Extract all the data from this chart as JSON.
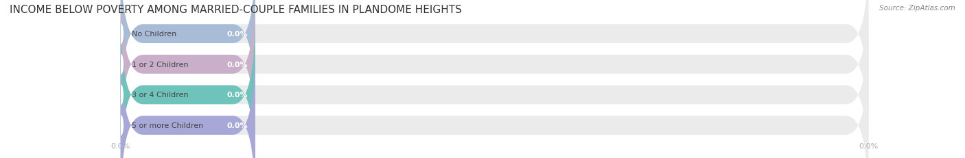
{
  "title": "INCOME BELOW POVERTY AMONG MARRIED-COUPLE FAMILIES IN PLANDOME HEIGHTS",
  "source": "Source: ZipAtlas.com",
  "categories": [
    "No Children",
    "1 or 2 Children",
    "3 or 4 Children",
    "5 or more Children"
  ],
  "values": [
    0.0,
    0.0,
    0.0,
    0.0
  ],
  "bar_colors": [
    "#a8bcd8",
    "#c9afc9",
    "#6ec4bb",
    "#a8a8d8"
  ],
  "bar_bg_color": "#ebebeb",
  "bar_label_color": "#ffffff",
  "title_color": "#333333",
  "source_color": "#888888",
  "tick_label_color": "#aaaaaa",
  "background_color": "#ffffff",
  "xlim": [
    0,
    100
  ],
  "x_ticks": [
    0.0,
    100.0
  ],
  "x_tick_labels": [
    "0.0%",
    "0.0%"
  ],
  "bar_height": 0.62,
  "figsize": [
    14.06,
    2.32
  ],
  "dpi": 100
}
